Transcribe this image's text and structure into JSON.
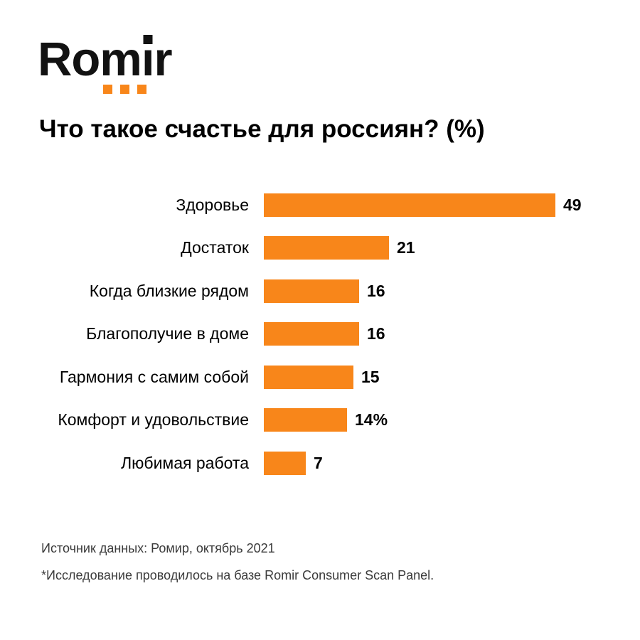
{
  "logo": {
    "text": "Romir",
    "text_before_i": "Rom",
    "text_i": "ı",
    "text_after_i": "r",
    "accent_color": "#F8861A",
    "text_color": "#121212"
  },
  "title": "Что такое счастье для россиян? (%)",
  "chart_data": {
    "type": "bar",
    "orientation": "horizontal",
    "title": "Что такое счастье для россиян? (%)",
    "categories": [
      "Здоровье",
      "Достаток",
      "Когда близкие рядом",
      "Благополучие в доме",
      "Гармония с самим собой",
      "Комфорт и удовольствие",
      "Любимая работа"
    ],
    "values": [
      49,
      21,
      16,
      16,
      15,
      14,
      7
    ],
    "value_labels": [
      "49",
      "21",
      "16",
      "16",
      "15",
      "14%",
      "7"
    ],
    "bar_color": "#F8861A",
    "xlabel": "",
    "ylabel": "",
    "xlim": [
      0,
      52
    ],
    "grid": false,
    "legend": false,
    "value_labels_position": "end-of-bar"
  },
  "footer": {
    "source_line": "Источник данных: Ромир, октябрь 2021",
    "note_line": "*Исследование проводилось на базе Romir Consumer Scan Panel."
  }
}
